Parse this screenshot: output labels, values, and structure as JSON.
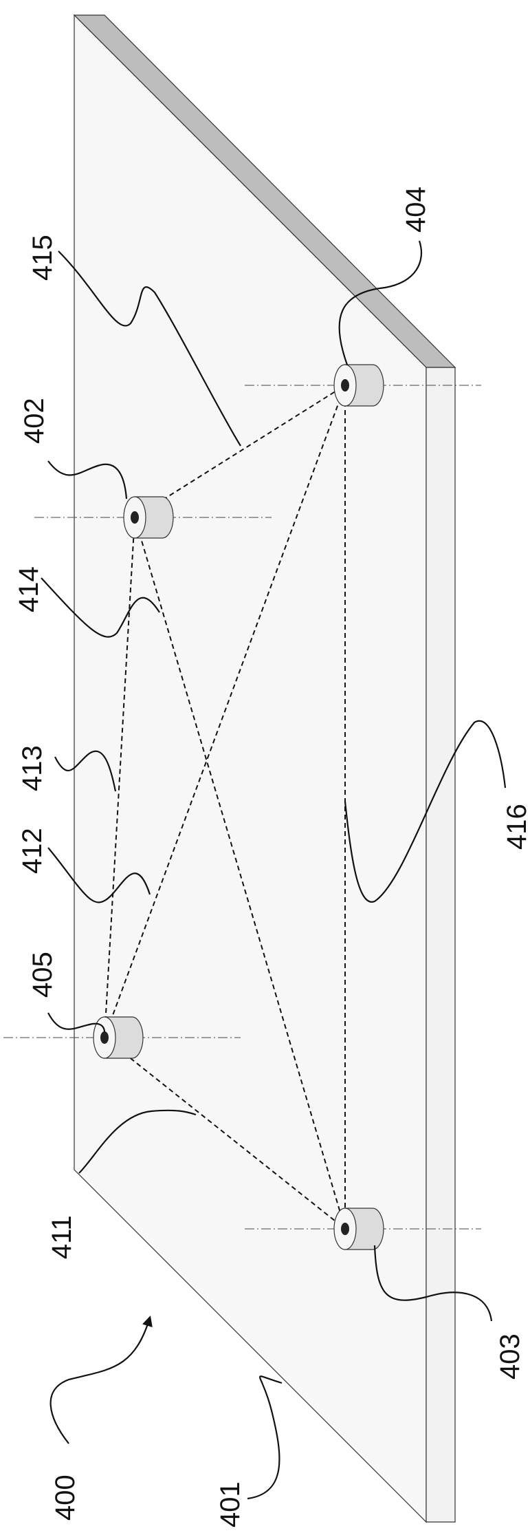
{
  "figure": {
    "colors": {
      "plate_face": "#f7f7f7",
      "plate_edge_top": "#bdbdbd",
      "plate_edge_side": "#f2f2f2",
      "line": "#111111",
      "node_body": "#dcdcdc",
      "node_cap": "#f6f6f6",
      "node_hole": "#222222"
    },
    "labels": {
      "fig_ref": "400",
      "plate": "401",
      "node_a": "402",
      "node_b": "403",
      "node_c": "404",
      "node_d": "405",
      "link_405_403": "411",
      "link_405_404": "412",
      "link_405_402": "413",
      "link_402_403": "414",
      "link_402_404": "415",
      "link_404_403": "416"
    }
  }
}
